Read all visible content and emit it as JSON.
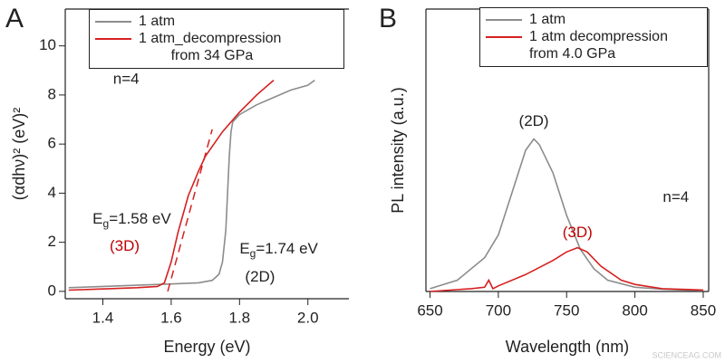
{
  "chart_data": [
    {
      "type": "line",
      "panel": "A",
      "xlabel": "Energy (eV)",
      "ylabel": "(αdhν)² (eV)²",
      "xlim": [
        1.29,
        2.12
      ],
      "ylim": [
        -0.3,
        11.5
      ],
      "xticks": [
        1.4,
        1.6,
        1.8,
        {
          "value": 2,
          "label": "2.0"
        }
      ],
      "yticks": [
        0,
        2,
        4,
        6,
        8,
        10
      ],
      "series": [
        {
          "name": "1 atm",
          "color": "#8c8c8c",
          "x": [
            1.3,
            1.4,
            1.5,
            1.6,
            1.68,
            1.72,
            1.74,
            1.75,
            1.76,
            1.765,
            1.77,
            1.775,
            1.78,
            1.8,
            1.85,
            1.9,
            1.95,
            2.0,
            2.02
          ],
          "values": [
            0.15,
            0.2,
            0.25,
            0.3,
            0.35,
            0.45,
            0.7,
            1.2,
            2.5,
            4.0,
            5.5,
            6.5,
            6.9,
            7.2,
            7.6,
            7.9,
            8.2,
            8.4,
            8.6
          ]
        },
        {
          "name": "1 atm_decompression\n        from 34 GPa",
          "color": "#d62020",
          "x": [
            1.3,
            1.4,
            1.5,
            1.56,
            1.58,
            1.6,
            1.62,
            1.65,
            1.68,
            1.7,
            1.75,
            1.8,
            1.85,
            1.9
          ],
          "values": [
            0.05,
            0.1,
            0.15,
            0.2,
            0.35,
            1.2,
            2.4,
            3.9,
            4.9,
            5.5,
            6.5,
            7.3,
            8.0,
            8.6
          ]
        }
      ],
      "tangent": {
        "color": "#d62020",
        "x": [
          1.59,
          1.72
        ],
        "values": [
          0.0,
          6.6
        ]
      },
      "annotations": [
        {
          "text": "n=4"
        },
        {
          "text": "E",
          "sub": "g",
          "rest": "=1.58 eV"
        },
        {
          "text": "(3D)",
          "color": "#c00000"
        },
        {
          "text": "E",
          "sub": "g",
          "rest": "=1.74 eV"
        },
        {
          "text": "(2D)"
        }
      ]
    },
    {
      "type": "line",
      "panel": "B",
      "xlabel": "Wavelength (nm)",
      "ylabel": "PL intensity (a.u.)",
      "xlim": [
        647,
        854
      ],
      "ylim": [
        0,
        1
      ],
      "xticks": [
        650,
        700,
        750,
        800,
        850
      ],
      "series": [
        {
          "name": "1 atm",
          "color": "#8c8c8c",
          "x": [
            650,
            670,
            690,
            700,
            710,
            720,
            726,
            730,
            740,
            750,
            760,
            770,
            780,
            800,
            820,
            850
          ],
          "values": [
            0.01,
            0.04,
            0.12,
            0.2,
            0.35,
            0.5,
            0.54,
            0.52,
            0.42,
            0.27,
            0.15,
            0.08,
            0.04,
            0.015,
            0.008,
            0.003
          ]
        },
        {
          "name": "1 atm decompression\nfrom 4.0 GPa",
          "color": "#d62020",
          "x": [
            650,
            680,
            690,
            693,
            696,
            700,
            720,
            740,
            750,
            758,
            765,
            775,
            790,
            800,
            820,
            850
          ],
          "values": [
            0.0,
            0.01,
            0.015,
            0.04,
            0.01,
            0.02,
            0.06,
            0.11,
            0.14,
            0.155,
            0.14,
            0.09,
            0.04,
            0.025,
            0.01,
            0.005
          ]
        }
      ],
      "annotations": [
        {
          "text": "(2D)"
        },
        {
          "text": "(3D)",
          "color": "#c00000"
        },
        {
          "text": "n=4"
        }
      ]
    }
  ],
  "watermark": "SCIENCEAG.COM"
}
